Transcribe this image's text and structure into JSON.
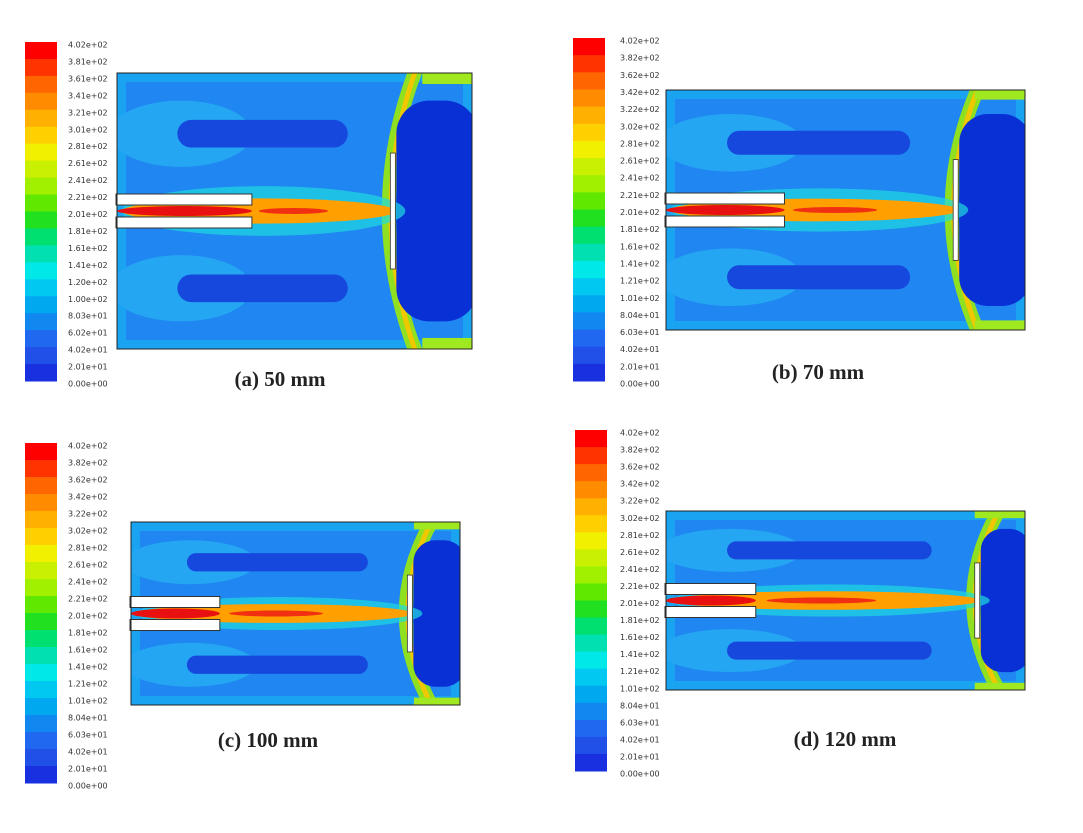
{
  "panels": [
    {
      "caption": "(a) 50 mm",
      "colorbar_labels": [
        "4.02e+02",
        "3.81e+02",
        "3.61e+02",
        "3.41e+02",
        "3.21e+02",
        "3.01e+02",
        "2.81e+02",
        "2.61e+02",
        "2.41e+02",
        "2.21e+02",
        "2.01e+02",
        "1.81e+02",
        "1.61e+02",
        "1.41e+02",
        "1.20e+02",
        "1.00e+02",
        "8.03e+01",
        "6.02e+01",
        "4.02e+01",
        "2.01e+01",
        "0.00e+00"
      ]
    },
    {
      "caption": "(b) 70 mm",
      "colorbar_labels": [
        "4.02e+02",
        "3.82e+02",
        "3.62e+02",
        "3.42e+02",
        "3.22e+02",
        "3.02e+02",
        "2.81e+02",
        "2.61e+02",
        "2.41e+02",
        "2.21e+02",
        "2.01e+02",
        "1.81e+02",
        "1.61e+02",
        "1.41e+02",
        "1.21e+02",
        "1.01e+02",
        "8.04e+01",
        "6.03e+01",
        "4.02e+01",
        "2.01e+01",
        "0.00e+00"
      ]
    },
    {
      "caption": "(c) 100 mm",
      "colorbar_labels": [
        "4.02e+02",
        "3.82e+02",
        "3.62e+02",
        "3.42e+02",
        "3.22e+02",
        "3.02e+02",
        "2.81e+02",
        "2.61e+02",
        "2.41e+02",
        "2.21e+02",
        "2.01e+02",
        "1.81e+02",
        "1.61e+02",
        "1.41e+02",
        "1.21e+02",
        "1.01e+02",
        "8.04e+01",
        "6.03e+01",
        "4.02e+01",
        "2.01e+01",
        "0.00e+00"
      ]
    },
    {
      "caption": "(d) 120 mm",
      "colorbar_labels": [
        "4.02e+02",
        "3.82e+02",
        "3.62e+02",
        "3.42e+02",
        "3.22e+02",
        "3.02e+02",
        "2.81e+02",
        "2.61e+02",
        "2.41e+02",
        "2.21e+02",
        "2.01e+02",
        "1.81e+02",
        "1.61e+02",
        "1.41e+02",
        "1.21e+02",
        "1.01e+02",
        "8.04e+01",
        "6.03e+01",
        "4.02e+01",
        "2.01e+01",
        "0.00e+00"
      ]
    }
  ]
}
